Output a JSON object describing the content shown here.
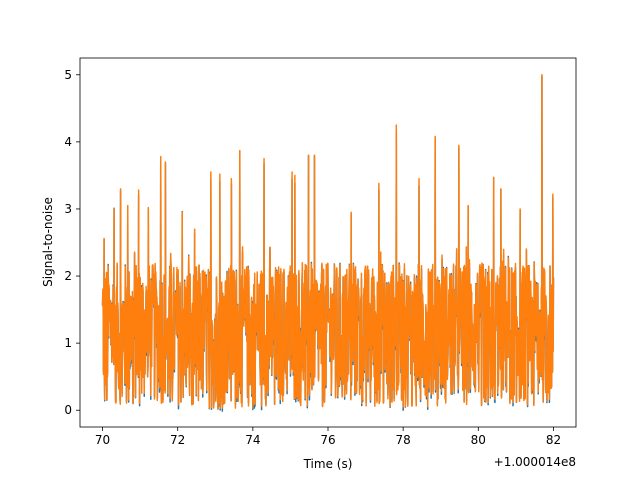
{
  "chart_data": {
    "type": "line",
    "title": "",
    "xlabel": "Time (s)",
    "ylabel": "Signal-to-noise",
    "x_offset_label": "+1.000014e8",
    "xlim": [
      69.4,
      82.6
    ],
    "ylim": [
      -0.25,
      5.25
    ],
    "x_ticks": [
      70,
      72,
      74,
      76,
      78,
      80,
      82
    ],
    "x_tick_labels": [
      "70",
      "72",
      "74",
      "76",
      "78",
      "80",
      "82"
    ],
    "y_ticks": [
      0,
      1,
      2,
      3,
      4,
      5
    ],
    "y_tick_labels": [
      "0",
      "1",
      "2",
      "3",
      "4",
      "5"
    ],
    "grid": false,
    "legend": "none",
    "x_range": [
      70.0,
      82.0
    ],
    "sample_count": 1450,
    "series": [
      {
        "color": "#1f77b4",
        "peak": {
          "x": 81.69,
          "y": 4.97
        }
      },
      {
        "color": "#ff7f0e",
        "peak": {
          "x": 81.69,
          "y": 5.0
        }
      }
    ],
    "peaks": [
      {
        "x": 70.04,
        "y": 2.56
      },
      {
        "x": 70.31,
        "y": 3.0
      },
      {
        "x": 70.48,
        "y": 3.3
      },
      {
        "x": 70.67,
        "y": 3.05
      },
      {
        "x": 70.96,
        "y": 3.28
      },
      {
        "x": 71.22,
        "y": 3.02
      },
      {
        "x": 71.55,
        "y": 3.78
      },
      {
        "x": 71.67,
        "y": 3.7
      },
      {
        "x": 72.12,
        "y": 2.95
      },
      {
        "x": 72.45,
        "y": 2.7
      },
      {
        "x": 72.88,
        "y": 3.55
      },
      {
        "x": 73.12,
        "y": 3.52
      },
      {
        "x": 73.43,
        "y": 3.45
      },
      {
        "x": 73.65,
        "y": 3.87
      },
      {
        "x": 74.3,
        "y": 3.75
      },
      {
        "x": 75.04,
        "y": 3.55
      },
      {
        "x": 75.12,
        "y": 3.5
      },
      {
        "x": 75.48,
        "y": 3.8
      },
      {
        "x": 75.64,
        "y": 3.8
      },
      {
        "x": 76.62,
        "y": 2.95
      },
      {
        "x": 77.35,
        "y": 3.38
      },
      {
        "x": 77.82,
        "y": 4.25
      },
      {
        "x": 78.42,
        "y": 3.45
      },
      {
        "x": 78.85,
        "y": 4.08
      },
      {
        "x": 79.48,
        "y": 3.95
      },
      {
        "x": 79.73,
        "y": 3.05
      },
      {
        "x": 80.41,
        "y": 3.47
      },
      {
        "x": 80.6,
        "y": 3.3
      },
      {
        "x": 81.11,
        "y": 3.0
      },
      {
        "x": 81.69,
        "y": 5.0
      },
      {
        "x": 81.98,
        "y": 3.22
      }
    ]
  }
}
